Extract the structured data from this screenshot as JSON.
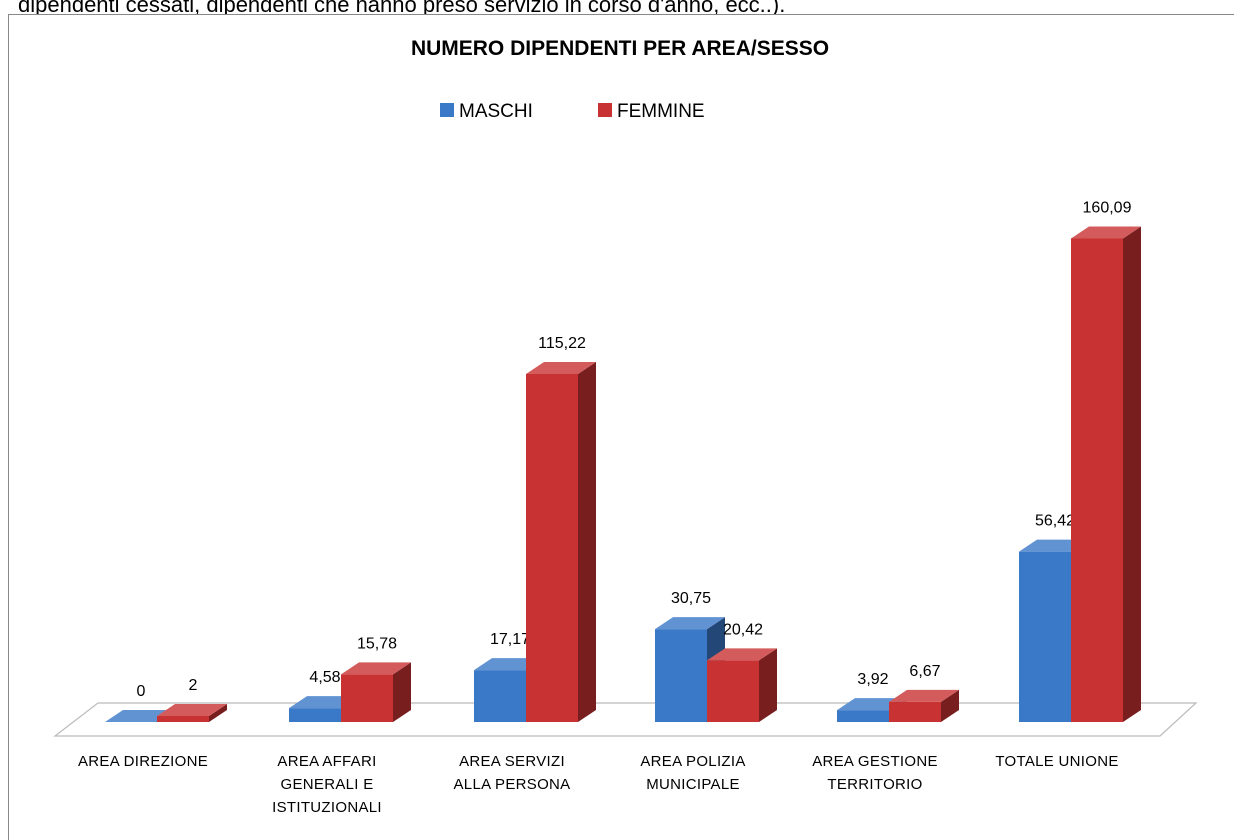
{
  "header_text": "dipendenti cessati, dipendenti che hanno preso servizio in corso d'anno, ecc..).",
  "chart_data": {
    "type": "bar3d",
    "title": "NUMERO DIPENDENTI PER AREA/SESSO",
    "categories": [
      "AREA DIREZIONE",
      "AREA AFFARI GENERALI E ISTITUZIONALI",
      "AREA SERVIZI ALLA PERSONA",
      "AREA POLIZIA MUNICIPALE",
      "AREA GESTIONE TERRITORIO",
      "TOTALE UNIONE"
    ],
    "series": [
      {
        "name": "MASCHI",
        "color": "#3a78c8",
        "values": [
          0,
          4.58,
          17.17,
          30.75,
          3.92,
          56.42
        ],
        "value_labels": [
          "0",
          "4,58",
          "17,17",
          "30,75",
          "3,92",
          "56,42"
        ]
      },
      {
        "name": "FEMMINE",
        "color": "#c83232",
        "values": [
          2,
          15.78,
          115.22,
          20.42,
          6.67,
          160.09
        ],
        "value_labels": [
          "2",
          "15,78",
          "115,22",
          "20,42",
          "6,67",
          "160,09"
        ]
      }
    ],
    "legend": "top"
  }
}
